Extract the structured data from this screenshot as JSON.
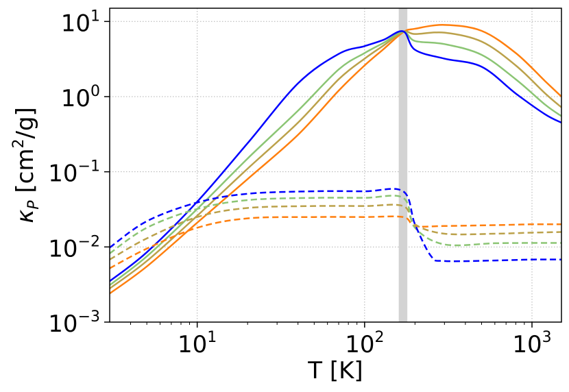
{
  "chart_data": {
    "type": "line",
    "title": "",
    "xlabel": "T [K]",
    "ylabel": "κ_P [cm²/g]",
    "xscale": "log",
    "yscale": "log",
    "xlim": [
      3,
      1500
    ],
    "ylim": [
      0.001,
      15
    ],
    "grid": true,
    "x_ticks": [
      {
        "base": "10",
        "exp": "1",
        "value": 10
      },
      {
        "base": "10",
        "exp": "2",
        "value": 100
      },
      {
        "base": "10",
        "exp": "3",
        "value": 1000
      }
    ],
    "y_ticks": [
      {
        "base": "10",
        "exp": "−3",
        "value": 0.001
      },
      {
        "base": "10",
        "exp": "−2",
        "value": 0.01
      },
      {
        "base": "10",
        "exp": "−1",
        "value": 0.1
      },
      {
        "base": "10",
        "exp": "0",
        "value": 1
      },
      {
        "base": "10",
        "exp": "1",
        "value": 10
      }
    ],
    "shaded_band": {
      "x": [
        160,
        180
      ],
      "color": "#d3d3d3"
    },
    "series": [
      {
        "style": "solid",
        "color": "#ff7f0e",
        "x": [
          3,
          5,
          10,
          20,
          40,
          70,
          100,
          130,
          170,
          200,
          300,
          500,
          800,
          1200,
          1500
        ],
        "y": [
          0.0024,
          0.0055,
          0.021,
          0.08,
          0.31,
          1.2,
          2.6,
          4.3,
          7.2,
          8.0,
          9.0,
          7.5,
          3.8,
          1.6,
          1.0
        ]
      },
      {
        "style": "solid",
        "color": "#bba14a",
        "x": [
          3,
          5,
          10,
          20,
          40,
          70,
          100,
          130,
          170,
          200,
          300,
          500,
          800,
          1200,
          1500
        ],
        "y": [
          0.0028,
          0.0065,
          0.026,
          0.11,
          0.45,
          1.7,
          3.2,
          4.8,
          7.3,
          6.8,
          7.1,
          5.4,
          2.6,
          1.1,
          0.72
        ]
      },
      {
        "style": "solid",
        "color": "#8bc574",
        "x": [
          3,
          5,
          10,
          20,
          40,
          70,
          100,
          130,
          170,
          200,
          300,
          500,
          800,
          1200,
          1500
        ],
        "y": [
          0.0031,
          0.0075,
          0.032,
          0.15,
          0.65,
          2.3,
          3.8,
          5.2,
          7.3,
          5.5,
          5.0,
          3.6,
          1.7,
          0.78,
          0.55
        ]
      },
      {
        "style": "solid",
        "color": "#0000ff",
        "x": [
          3,
          5,
          10,
          20,
          40,
          70,
          100,
          130,
          170,
          200,
          300,
          500,
          800,
          1200,
          1500
        ],
        "y": [
          0.0035,
          0.0085,
          0.04,
          0.24,
          1.5,
          3.7,
          4.7,
          5.7,
          7.4,
          4.2,
          3.2,
          2.5,
          1.1,
          0.58,
          0.45
        ]
      },
      {
        "style": "dashed",
        "color": "#ff7f0e",
        "x": [
          3,
          5,
          10,
          20,
          50,
          100,
          170,
          200,
          300,
          600,
          1000,
          1500
        ],
        "y": [
          0.0052,
          0.0095,
          0.018,
          0.024,
          0.025,
          0.025,
          0.025,
          0.019,
          0.019,
          0.0195,
          0.02,
          0.02
        ]
      },
      {
        "style": "dashed",
        "color": "#bba14a",
        "x": [
          3,
          5,
          10,
          20,
          50,
          100,
          170,
          200,
          300,
          600,
          1000,
          1500
        ],
        "y": [
          0.0068,
          0.013,
          0.025,
          0.033,
          0.035,
          0.035,
          0.035,
          0.02,
          0.015,
          0.015,
          0.0155,
          0.0158
        ]
      },
      {
        "style": "dashed",
        "color": "#8bc574",
        "x": [
          3,
          5,
          10,
          20,
          50,
          100,
          170,
          200,
          300,
          600,
          1000,
          1500
        ],
        "y": [
          0.0082,
          0.018,
          0.032,
          0.042,
          0.045,
          0.045,
          0.045,
          0.018,
          0.0108,
          0.0112,
          0.0113,
          0.0113
        ]
      },
      {
        "style": "dashed",
        "color": "#0000ff",
        "x": [
          3,
          5,
          10,
          20,
          50,
          100,
          170,
          200,
          250,
          300,
          600,
          1000,
          1500
        ],
        "y": [
          0.0098,
          0.022,
          0.039,
          0.051,
          0.055,
          0.055,
          0.055,
          0.02,
          0.0075,
          0.0065,
          0.0066,
          0.0068,
          0.0068
        ]
      }
    ]
  }
}
